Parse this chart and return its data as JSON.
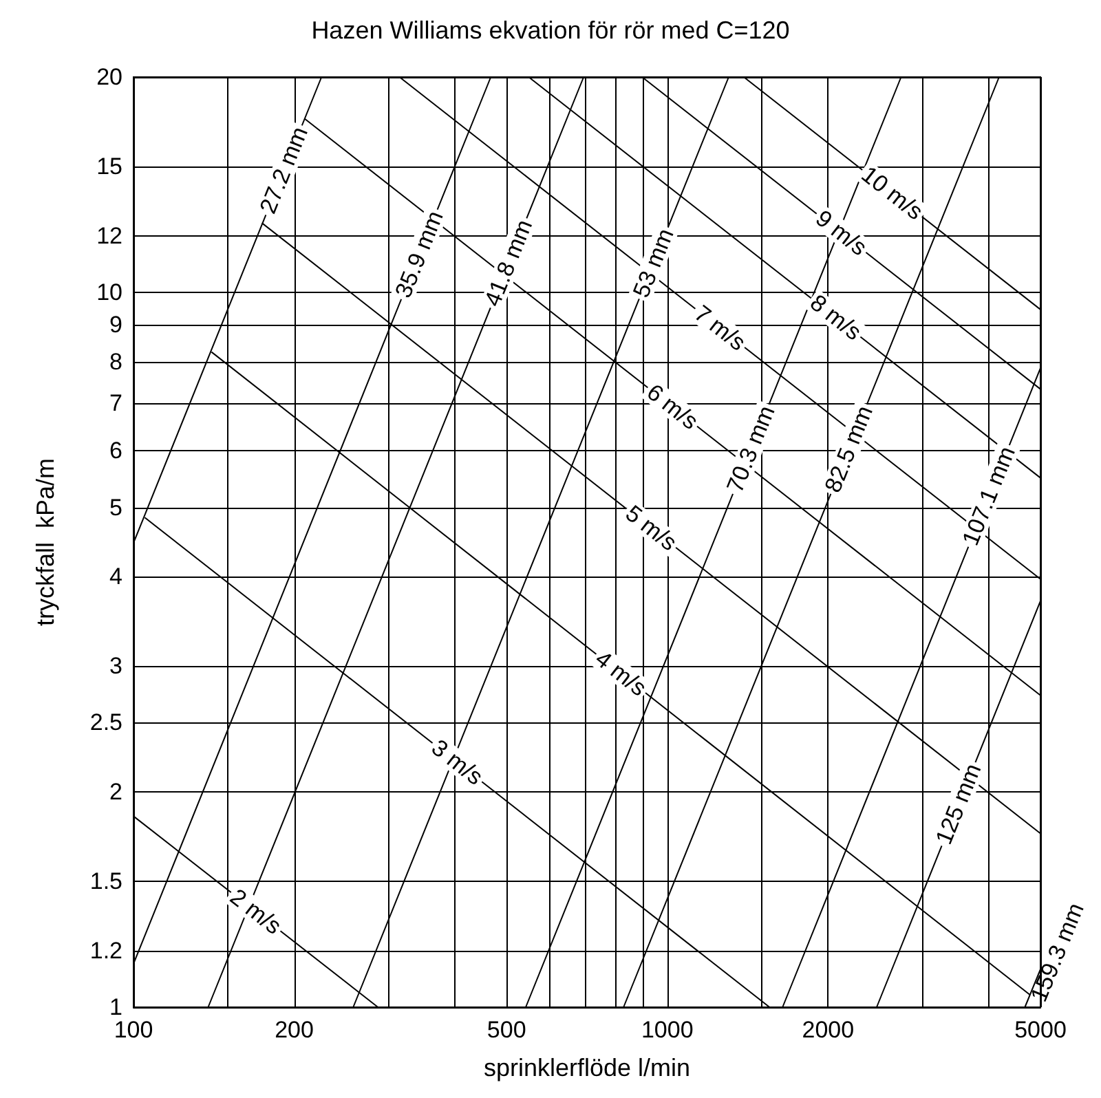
{
  "chart_data": {
    "type": "line",
    "title": "Hazen Williams ekvation för rör med C=120",
    "xlabel": "sprinklerflöde l/min",
    "ylabel": "tryckfall  kPa/m",
    "log": "xy",
    "grid": true,
    "legend": false,
    "xlim": [
      100,
      5000
    ],
    "ylim": [
      1,
      20
    ],
    "xticks": [
      100,
      {
        "value": 150,
        "label": null
      },
      200,
      {
        "value": 300,
        "label": null
      },
      {
        "value": 400,
        "label": null
      },
      500,
      {
        "value": 600,
        "label": null
      },
      {
        "value": 700,
        "label": null
      },
      {
        "value": 800,
        "label": null
      },
      {
        "value": 900,
        "label": null
      },
      1000,
      {
        "value": 1500,
        "label": null
      },
      2000,
      {
        "value": 3000,
        "label": null
      },
      {
        "value": 4000,
        "label": null
      },
      5000
    ],
    "yticks": [
      1,
      1.2,
      1.5,
      2,
      2.5,
      3,
      4,
      5,
      6,
      7,
      8,
      9,
      10,
      12,
      15,
      20
    ],
    "series": [
      {
        "name": "27.2 mm",
        "color": "#000000",
        "x": [
          100,
          225
        ],
        "values": [
          4.46,
          20
        ]
      },
      {
        "name": "35.9 mm",
        "color": "#000000",
        "x": [
          100,
          467
        ],
        "values": [
          1.15,
          20
        ]
      },
      {
        "name": "41.8 mm",
        "color": "#000000",
        "x": [
          138,
          697
        ],
        "values": [
          1,
          20
        ]
      },
      {
        "name": "53 mm",
        "color": "#000000",
        "x": [
          258,
          1303
        ],
        "values": [
          1,
          20
        ]
      },
      {
        "name": "70.3 mm",
        "color": "#000000",
        "x": [
          543,
          2741
        ],
        "values": [
          1,
          20
        ]
      },
      {
        "name": "82.5 mm",
        "color": "#000000",
        "x": [
          828,
          4183
        ],
        "values": [
          1,
          20
        ]
      },
      {
        "name": "107.1 mm",
        "color": "#000000",
        "x": [
          1644,
          5000
        ],
        "values": [
          1,
          7.83
        ]
      },
      {
        "name": "125 mm",
        "color": "#000000",
        "x": [
          2467,
          5000
        ],
        "values": [
          1,
          3.7
        ]
      },
      {
        "name": "159.3 mm",
        "color": "#000000",
        "x": [
          4676,
          5000
        ],
        "values": [
          1,
          1.13
        ]
      },
      {
        "name": "2 m/s",
        "color": "#000000",
        "x": [
          100,
          287
        ],
        "values": [
          1.85,
          1
        ]
      },
      {
        "name": "3 m/s",
        "color": "#000000",
        "x": [
          105,
          1554
        ],
        "values": [
          4.84,
          1
        ]
      },
      {
        "name": "4 m/s",
        "color": "#000000",
        "x": [
          140,
          4783
        ],
        "values": [
          8.25,
          1.04
        ]
      },
      {
        "name": "5 m/s",
        "color": "#000000",
        "x": [
          174,
          5000
        ],
        "values": [
          12.5,
          1.75
        ]
      },
      {
        "name": "6 m/s",
        "color": "#000000",
        "x": [
          209,
          5000
        ],
        "values": [
          17.5,
          2.73
        ]
      },
      {
        "name": "7 m/s",
        "color": "#000000",
        "x": [
          315,
          5000
        ],
        "values": [
          20,
          3.97
        ]
      },
      {
        "name": "8 m/s",
        "color": "#000000",
        "x": [
          550,
          5000
        ],
        "values": [
          20,
          5.5
        ]
      },
      {
        "name": "9 m/s",
        "color": "#000000",
        "x": [
          897,
          5000
        ],
        "values": [
          20,
          7.32
        ]
      },
      {
        "name": "10 m/s",
        "color": "#000000",
        "x": [
          1391,
          5000
        ],
        "values": [
          20,
          9.46
        ]
      }
    ]
  }
}
